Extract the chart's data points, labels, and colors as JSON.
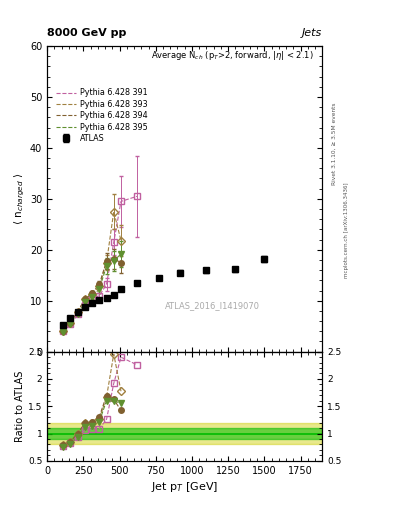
{
  "title_top": "8000 GeV pp",
  "title_right": "Jets",
  "main_title": "Average N$_{ch}$ (p$_{T}$>2, forward, |$\\eta$| < 2.1)",
  "xlabel": "Jet p$_{T}$ [GeV]",
  "ylabel_main": "$\\langle$ n$_{charged}$ $\\rangle$",
  "ylabel_ratio": "Ratio to ATLAS",
  "watermark": "ATLAS_2016_I1419070",
  "right_label": "Rivet 3.1.10, ≥ 3.5M events",
  "arxiv_label": "mcplots.cern.ch [arXiv:1306.3436]",
  "atlas_x": [
    110,
    160,
    210,
    260,
    310,
    360,
    410,
    460,
    510,
    620,
    770,
    920,
    1100,
    1300,
    1500
  ],
  "atlas_y": [
    5.2,
    6.7,
    7.8,
    8.7,
    9.5,
    10.1,
    10.5,
    11.2,
    12.3,
    13.5,
    14.5,
    15.5,
    16.0,
    16.2,
    18.2
  ],
  "atlas_yerr": [
    0.25,
    0.25,
    0.25,
    0.25,
    0.3,
    0.3,
    0.3,
    0.35,
    0.35,
    0.4,
    0.4,
    0.45,
    0.5,
    0.5,
    0.5
  ],
  "py391_x": [
    110,
    160,
    210,
    260,
    310,
    360,
    410,
    460,
    510,
    620
  ],
  "py391_y": [
    4.0,
    5.5,
    7.3,
    9.2,
    10.3,
    11.0,
    13.2,
    21.5,
    29.5,
    30.5
  ],
  "py391_yerr": [
    0.2,
    0.2,
    0.25,
    0.3,
    0.4,
    0.5,
    1.2,
    2.5,
    5.0,
    8.0
  ],
  "py391_color": "#c060a0",
  "py393_x": [
    110,
    160,
    210,
    260,
    310,
    360,
    410,
    460,
    510
  ],
  "py393_y": [
    4.1,
    5.7,
    7.8,
    10.3,
    11.3,
    12.8,
    17.5,
    27.5,
    21.8
  ],
  "py393_yerr": [
    0.2,
    0.2,
    0.25,
    0.35,
    0.5,
    0.7,
    1.5,
    3.5,
    3.0
  ],
  "py393_color": "#a08040",
  "py394_x": [
    110,
    160,
    210,
    260,
    310,
    360,
    410,
    460,
    510
  ],
  "py394_y": [
    4.1,
    5.7,
    7.8,
    10.3,
    11.5,
    13.2,
    17.8,
    18.2,
    17.5
  ],
  "py394_yerr": [
    0.2,
    0.2,
    0.25,
    0.35,
    0.5,
    0.7,
    1.5,
    2.0,
    2.0
  ],
  "py394_color": "#806030",
  "py395_x": [
    110,
    160,
    210,
    260,
    310,
    360,
    410,
    460,
    510
  ],
  "py395_y": [
    3.9,
    5.4,
    7.3,
    9.8,
    10.8,
    12.3,
    16.8,
    17.8,
    19.2
  ],
  "py395_yerr": [
    0.2,
    0.2,
    0.25,
    0.35,
    0.5,
    0.7,
    1.5,
    2.0,
    2.5
  ],
  "py395_color": "#609030",
  "ylim_main": [
    0,
    60
  ],
  "ylim_ratio": [
    0.5,
    2.5
  ],
  "xlim": [
    0,
    1900
  ],
  "atlas_color": "#000000",
  "bg_color": "#ffffff",
  "ratio_band_green_lo": 0.9,
  "ratio_band_green_hi": 1.1,
  "ratio_band_yellow_lo": 0.8,
  "ratio_band_yellow_hi": 1.2,
  "ratio_band_green_color": "#00bb00",
  "ratio_band_yellow_color": "#cccc00"
}
